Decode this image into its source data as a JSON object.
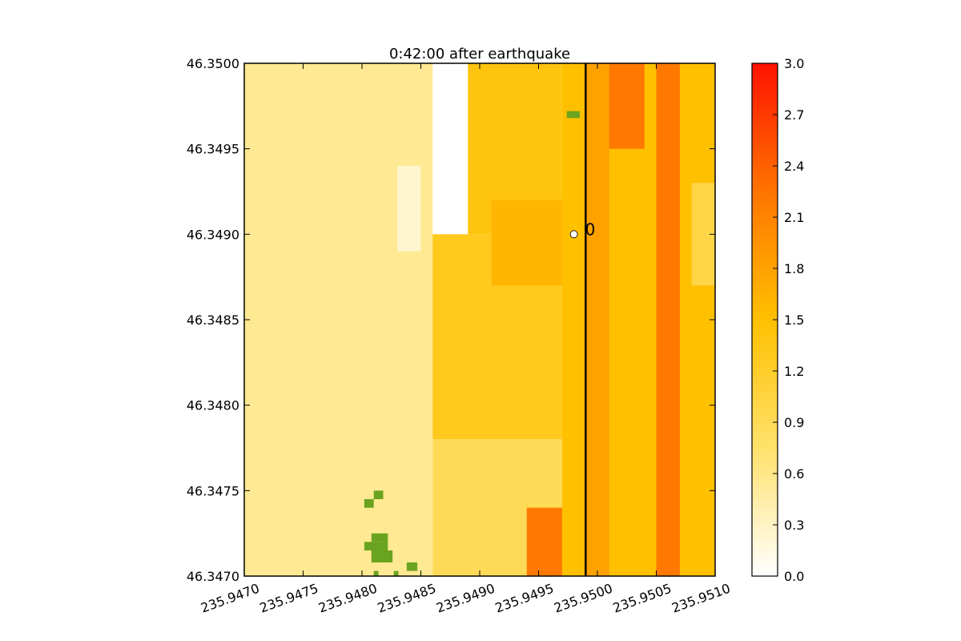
{
  "chart_data": {
    "type": "heatmap",
    "title": "0:42:00 after earthquake",
    "xlabel": "",
    "ylabel": "",
    "xlim": [
      235.947,
      235.951
    ],
    "ylim": [
      46.347,
      46.35
    ],
    "x_ticks": [
      "235.9470",
      "235.9475",
      "235.9480",
      "235.9485",
      "235.9490",
      "235.9495",
      "235.9500",
      "235.9505",
      "235.9510"
    ],
    "y_ticks": [
      "46.3470",
      "46.3475",
      "46.3480",
      "46.3485",
      "46.3490",
      "46.3495",
      "46.3500"
    ],
    "colorbar": {
      "range": [
        0.0,
        3.0
      ],
      "ticks": [
        "0.0",
        "0.3",
        "0.6",
        "0.9",
        "1.2",
        "1.5",
        "1.8",
        "2.1",
        "2.4",
        "2.7",
        "3.0"
      ],
      "colors": [
        "#ffffff",
        "#ffe16b",
        "#ffc000",
        "#ff7400",
        "#ff1200"
      ]
    },
    "dry_land_color": "#6aa31f",
    "regions": [
      {
        "x": [
          235.947,
          235.9486
        ],
        "y": [
          46.347,
          46.35
        ],
        "value": 0.55
      },
      {
        "x": [
          235.9483,
          235.9485
        ],
        "y": [
          46.3489,
          46.3494
        ],
        "value": 0.25
      },
      {
        "x": [
          235.9486,
          235.9497
        ],
        "y": [
          46.3478,
          46.349
        ],
        "value": 1.3
      },
      {
        "x": [
          235.9486,
          235.9497
        ],
        "y": [
          46.347,
          46.3478
        ],
        "value": 0.9
      },
      {
        "x": [
          235.9489,
          235.9497
        ],
        "y": [
          46.349,
          46.35
        ],
        "value": 1.4
      },
      {
        "x": [
          235.9491,
          235.9497
        ],
        "y": [
          46.3487,
          46.3492
        ],
        "value": 1.6
      },
      {
        "x": [
          235.9494,
          235.9499
        ],
        "y": [
          46.347,
          46.3474
        ],
        "value": 2.2
      },
      {
        "x": [
          235.9497,
          235.951
        ],
        "y": [
          46.347,
          46.35
        ],
        "value": 1.5
      },
      {
        "x": [
          235.95,
          235.9504
        ],
        "y": [
          46.3495,
          46.35
        ],
        "value": 2.2
      },
      {
        "x": [
          235.9505,
          235.9507
        ],
        "y": [
          46.347,
          46.35
        ],
        "value": 2.2
      },
      {
        "x": [
          235.9499,
          235.9501
        ],
        "y": [
          46.347,
          46.35
        ],
        "value": 1.8
      },
      {
        "x": [
          235.9508,
          235.951
        ],
        "y": [
          46.3487,
          46.3493
        ],
        "value": 1.0
      }
    ],
    "dry_land_cells": [
      {
        "x": [
          235.94974,
          235.94985
        ],
        "y": [
          46.34968,
          46.34972
        ]
      },
      {
        "x": [
          235.9481,
          235.94818
        ],
        "y": [
          46.34745,
          46.3475
        ]
      },
      {
        "x": [
          235.94802,
          235.9481
        ],
        "y": [
          46.3474,
          46.34745
        ]
      },
      {
        "x": [
          235.94808,
          235.94822
        ],
        "y": [
          46.3472,
          46.34725
        ]
      },
      {
        "x": [
          235.94802,
          235.94822
        ],
        "y": [
          46.34715,
          46.3472
        ]
      },
      {
        "x": [
          235.94808,
          235.94826
        ],
        "y": [
          46.34708,
          46.34715
        ]
      },
      {
        "x": [
          235.94838,
          235.94847
        ],
        "y": [
          46.34703,
          46.34708
        ]
      },
      {
        "x": [
          235.9481,
          235.94814
        ],
        "y": [
          46.347,
          46.34703
        ]
      },
      {
        "x": [
          235.94827,
          235.94831
        ],
        "y": [
          46.347,
          46.34703
        ]
      }
    ],
    "transect_line": {
      "x": 235.9499
    },
    "gauges": [
      {
        "label": "0",
        "x": 235.9498,
        "y": 46.349
      }
    ]
  }
}
